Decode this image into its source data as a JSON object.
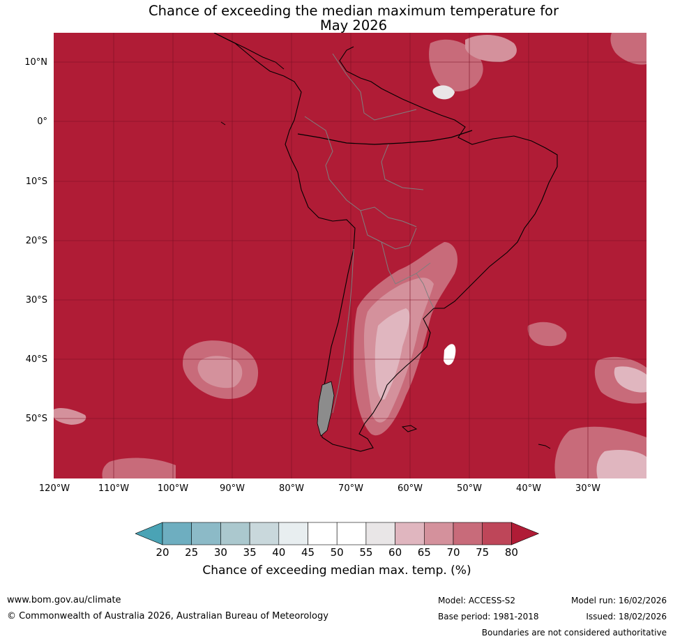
{
  "title": {
    "line1": "Chance of exceeding the median maximum temperature for",
    "line2": "May 2026"
  },
  "map": {
    "lat_labels": [
      "10°N",
      "0°",
      "10°S",
      "20°S",
      "30°S",
      "40°S",
      "50°S"
    ],
    "lon_labels": [
      "120°W",
      "110°W",
      "100°W",
      "90°W",
      "80°W",
      "70°W",
      "60°W",
      "50°W",
      "40°W",
      "30°W"
    ],
    "background_color": "#b01c36",
    "grid_color": "#7a0f22",
    "coast_color": "#000000",
    "border_color": "#7f7f7f"
  },
  "colorbar": {
    "ticks": [
      "20",
      "25",
      "30",
      "35",
      "40",
      "45",
      "50",
      "55",
      "60",
      "65",
      "70",
      "75",
      "80"
    ],
    "colors": [
      "#4aa3b5",
      "#6eaec0",
      "#8cbac7",
      "#abc8ce",
      "#c9d8dc",
      "#e8eef0",
      "#ffffff",
      "#ffffff",
      "#e9e6e7",
      "#e0b6bf",
      "#d4919c",
      "#c86b7a",
      "#be4659",
      "#b01c36"
    ],
    "label": "Chance of exceeding median max. temp. (%)"
  },
  "footer": {
    "url": "www.bom.gov.au/climate",
    "copyright": "© Commonwealth of Australia 2026, Australian Bureau of Meteorology",
    "model": "Model: ACCESS-S2",
    "base_period": "Base period: 1981-2018",
    "model_run": "Model run: 16/02/2026",
    "issued": "Issued: 18/02/2026",
    "disclaimer": "Boundaries are not considered authoritative"
  }
}
